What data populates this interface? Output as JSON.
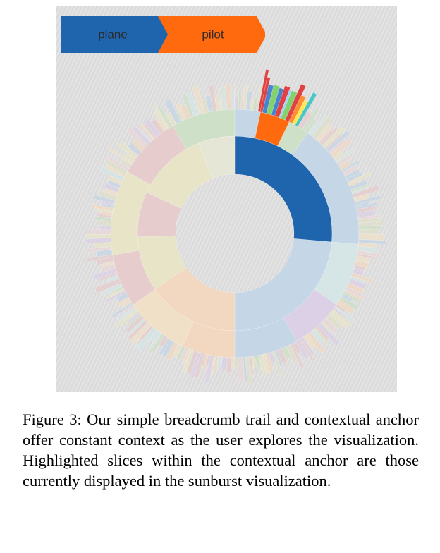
{
  "breadcrumb": {
    "items": [
      {
        "label": "plane",
        "color": "#1f65ad"
      },
      {
        "label": "pilot",
        "color": "#ff6a0f"
      }
    ]
  },
  "sunburst": {
    "highlight_color": "#1f65ad",
    "child_highlight_color": "#ff6a0f",
    "base_color": "#c5d6e6"
  },
  "caption": {
    "text": "Figure 3: Our simple breadcrumb trail and contextual anchor offer constant context as the user explores the visualization. Highlighted slices within the contextual anchor are those currently displayed in the sunburst visualization."
  }
}
